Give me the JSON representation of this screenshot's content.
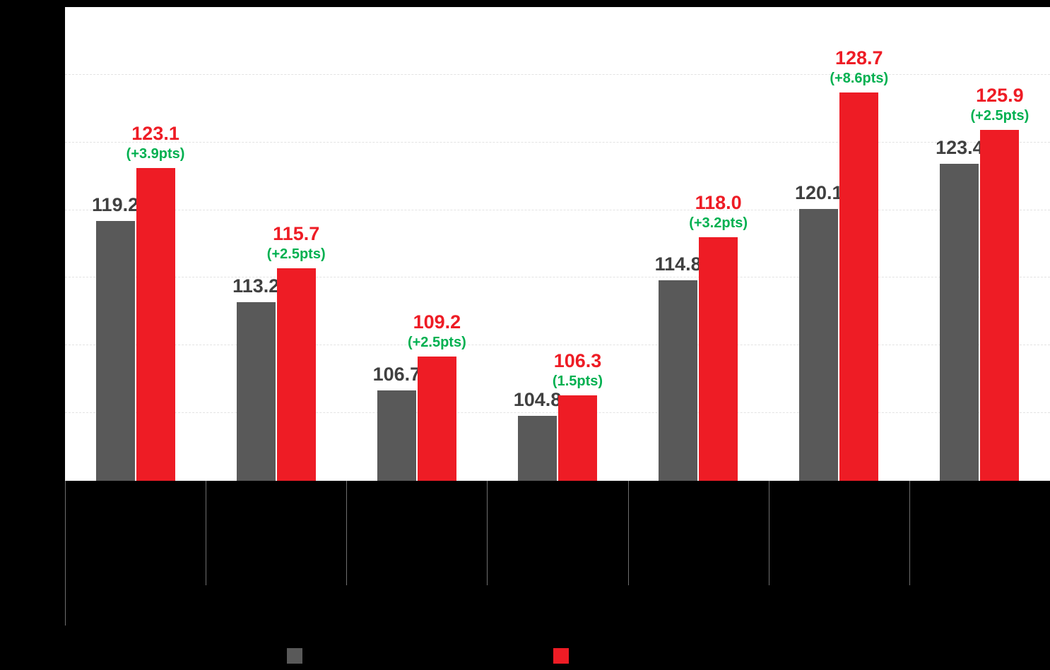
{
  "colors": {
    "background": "#000000",
    "plot_background": "#FFFFFF",
    "gray_series": "#595959",
    "red_series": "#EE1C25",
    "green_delta": "#00B050",
    "gray_value_label": "#404040",
    "gridline": "#E3E3E3",
    "axis_separator": "#6E6E6E"
  },
  "legend": {
    "swatches": [
      {
        "name": "gray-series-swatch",
        "color_key": "gray_series"
      },
      {
        "name": "red-series-swatch",
        "color_key": "red_series"
      }
    ]
  },
  "chart_data": {
    "type": "bar",
    "title": "",
    "categories": [
      "",
      "",
      "",
      "",
      "",
      "",
      ""
    ],
    "series": [
      {
        "name": "gray-series",
        "color_key": "gray_series",
        "values": [
          119.2,
          113.2,
          106.7,
          104.8,
          114.8,
          120.1,
          123.4
        ]
      },
      {
        "name": "red-series",
        "color_key": "red_series",
        "values": [
          123.1,
          115.7,
          109.2,
          106.3,
          118.0,
          128.7,
          125.9
        ]
      }
    ],
    "delta_labels": [
      "(+3.9pts)",
      "(+2.5pts)",
      "(+2.5pts)",
      "(1.5pts)",
      "(+3.2pts)",
      "(+8.6pts)",
      "(+2.5pts)"
    ],
    "ylim": [
      100,
      135
    ],
    "gridline_values": [
      105,
      110,
      115,
      120,
      125,
      130
    ],
    "value_label_decimals": 1,
    "grid": "dashed-horizontal",
    "legend_position": "bottom"
  }
}
